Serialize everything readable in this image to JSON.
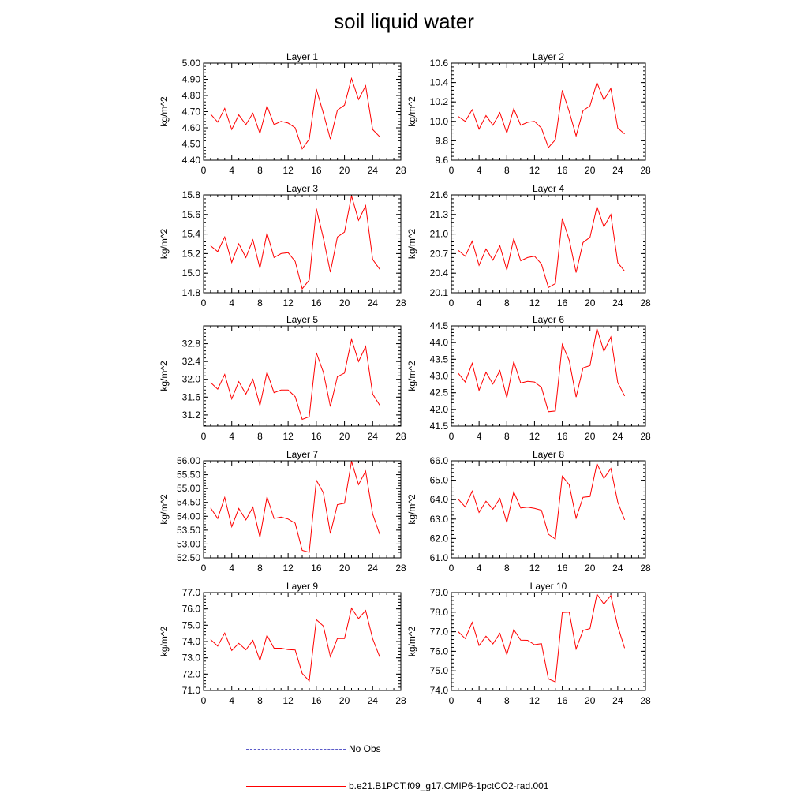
{
  "title": "soil liquid water",
  "legend": [
    {
      "label": "No Obs",
      "color": "#5a5ac8",
      "style": "dashed"
    },
    {
      "label": "b.e21.B1PCT.f09_g17.CMIP6-1pctCO2-rad.001",
      "color": "#ff0000",
      "style": "solid"
    }
  ],
  "chart_data": [
    {
      "type": "line",
      "title": "Layer 1",
      "xlabel": "",
      "ylabel": "kg/m^2",
      "xlim": [
        0,
        28
      ],
      "xticks": [
        0,
        4,
        8,
        12,
        16,
        20,
        24,
        28
      ],
      "ylim": [
        4.4,
        5.0
      ],
      "yticks": [
        "4.40",
        "4.50",
        "4.60",
        "4.70",
        "4.80",
        "4.90",
        "5.00"
      ],
      "series": [
        {
          "color": "#ff0000",
          "x": [
            1,
            2,
            3,
            4,
            5,
            6,
            7,
            8,
            9,
            10,
            11,
            12,
            13,
            14,
            15,
            16,
            17,
            18,
            19,
            20,
            21,
            22,
            23,
            24,
            25
          ],
          "y": [
            4.685,
            4.635,
            4.72,
            4.59,
            4.68,
            4.62,
            4.69,
            4.565,
            4.735,
            4.62,
            4.64,
            4.63,
            4.6,
            4.47,
            4.53,
            4.84,
            4.69,
            4.53,
            4.71,
            4.74,
            4.905,
            4.775,
            4.86,
            4.59,
            4.545
          ]
        }
      ]
    },
    {
      "type": "line",
      "title": "Layer 2",
      "xlabel": "",
      "ylabel": "kg/m^2",
      "xlim": [
        0,
        28
      ],
      "xticks": [
        0,
        4,
        8,
        12,
        16,
        20,
        24,
        28
      ],
      "ylim": [
        9.6,
        10.6
      ],
      "yticks": [
        "9.6",
        "9.8",
        "10.0",
        "10.2",
        "10.4",
        "10.6"
      ],
      "series": [
        {
          "color": "#ff0000",
          "x": [
            1,
            2,
            3,
            4,
            5,
            6,
            7,
            8,
            9,
            10,
            11,
            12,
            13,
            14,
            15,
            16,
            17,
            18,
            19,
            20,
            21,
            22,
            23,
            24,
            25
          ],
          "y": [
            10.05,
            10.0,
            10.12,
            9.92,
            10.06,
            9.96,
            10.09,
            9.88,
            10.13,
            9.96,
            9.99,
            10.0,
            9.93,
            9.73,
            9.81,
            10.32,
            10.1,
            9.85,
            10.11,
            10.16,
            10.4,
            10.22,
            10.34,
            9.93,
            9.87
          ]
        }
      ]
    },
    {
      "type": "line",
      "title": "Layer 3",
      "xlabel": "",
      "ylabel": "kg/m^2",
      "xlim": [
        0,
        28
      ],
      "xticks": [
        0,
        4,
        8,
        12,
        16,
        20,
        24,
        28
      ],
      "ylim": [
        14.8,
        15.8
      ],
      "yticks": [
        "14.8",
        "15.0",
        "15.2",
        "15.4",
        "15.6",
        "15.8"
      ],
      "series": [
        {
          "color": "#ff0000",
          "x": [
            1,
            2,
            3,
            4,
            5,
            6,
            7,
            8,
            9,
            10,
            11,
            12,
            13,
            14,
            15,
            16,
            17,
            18,
            19,
            20,
            21,
            22,
            23,
            24,
            25
          ],
          "y": [
            15.28,
            15.22,
            15.37,
            15.11,
            15.3,
            15.16,
            15.34,
            15.05,
            15.41,
            15.16,
            15.2,
            15.21,
            15.12,
            14.84,
            14.93,
            15.66,
            15.36,
            15.01,
            15.37,
            15.42,
            15.79,
            15.54,
            15.69,
            15.14,
            15.04
          ]
        }
      ]
    },
    {
      "type": "line",
      "title": "Layer 4",
      "xlabel": "",
      "ylabel": "kg/m^2",
      "xlim": [
        0,
        28
      ],
      "xticks": [
        0,
        4,
        8,
        12,
        16,
        20,
        24,
        28
      ],
      "ylim": [
        20.1,
        21.6
      ],
      "yticks": [
        "20.1",
        "20.4",
        "20.7",
        "21.0",
        "21.3",
        "21.6"
      ],
      "series": [
        {
          "color": "#ff0000",
          "x": [
            1,
            2,
            3,
            4,
            5,
            6,
            7,
            8,
            9,
            10,
            11,
            12,
            13,
            14,
            15,
            16,
            17,
            18,
            19,
            20,
            21,
            22,
            23,
            24,
            25
          ],
          "y": [
            20.75,
            20.66,
            20.89,
            20.52,
            20.77,
            20.6,
            20.82,
            20.45,
            20.93,
            20.59,
            20.64,
            20.66,
            20.54,
            20.18,
            20.24,
            21.24,
            20.91,
            20.41,
            20.87,
            20.95,
            21.42,
            21.11,
            21.3,
            20.56,
            20.43
          ]
        }
      ]
    },
    {
      "type": "line",
      "title": "Layer 5",
      "xlabel": "",
      "ylabel": "kg/m^2",
      "xlim": [
        0,
        28
      ],
      "xticks": [
        0,
        4,
        8,
        12,
        16,
        20,
        24,
        28
      ],
      "ylim": [
        30.95,
        33.2
      ],
      "yticks": [
        "31.2",
        "31.6",
        "32.0",
        "32.4",
        "32.8"
      ],
      "series": [
        {
          "color": "#ff0000",
          "x": [
            1,
            2,
            3,
            4,
            5,
            6,
            7,
            8,
            9,
            10,
            11,
            12,
            13,
            14,
            15,
            16,
            17,
            18,
            19,
            20,
            21,
            22,
            23,
            24,
            25
          ],
          "y": [
            31.93,
            31.78,
            32.11,
            31.56,
            31.95,
            31.67,
            32.0,
            31.41,
            32.16,
            31.7,
            31.76,
            31.76,
            31.61,
            31.1,
            31.16,
            32.6,
            32.16,
            31.39,
            32.06,
            32.14,
            32.9,
            32.4,
            32.74,
            31.67,
            31.42
          ]
        }
      ]
    },
    {
      "type": "line",
      "title": "Layer 6",
      "xlabel": "",
      "ylabel": "kg/m^2",
      "xlim": [
        0,
        28
      ],
      "xticks": [
        0,
        4,
        8,
        12,
        16,
        20,
        24,
        28
      ],
      "ylim": [
        41.5,
        44.5
      ],
      "yticks": [
        "41.5",
        "42.0",
        "42.5",
        "43.0",
        "43.5",
        "44.0",
        "44.5"
      ],
      "series": [
        {
          "color": "#ff0000",
          "x": [
            1,
            2,
            3,
            4,
            5,
            6,
            7,
            8,
            9,
            10,
            11,
            12,
            13,
            14,
            15,
            16,
            17,
            18,
            19,
            20,
            21,
            22,
            23,
            24,
            25
          ],
          "y": [
            43.08,
            42.82,
            43.38,
            42.57,
            43.11,
            42.76,
            43.16,
            42.35,
            43.43,
            42.79,
            42.84,
            42.82,
            42.66,
            41.93,
            41.95,
            43.95,
            43.46,
            42.37,
            43.24,
            43.31,
            44.42,
            43.74,
            44.17,
            42.8,
            42.4
          ]
        }
      ]
    },
    {
      "type": "line",
      "title": "Layer 7",
      "xlabel": "",
      "ylabel": "kg/m^2",
      "xlim": [
        0,
        28
      ],
      "xticks": [
        0,
        4,
        8,
        12,
        16,
        20,
        24,
        28
      ],
      "ylim": [
        52.5,
        56.0
      ],
      "yticks": [
        "52.50",
        "53.00",
        "53.50",
        "54.00",
        "54.50",
        "55.00",
        "55.50",
        "56.00"
      ],
      "series": [
        {
          "color": "#ff0000",
          "x": [
            1,
            2,
            3,
            4,
            5,
            6,
            7,
            8,
            9,
            10,
            11,
            12,
            13,
            14,
            15,
            16,
            17,
            18,
            19,
            20,
            21,
            22,
            23,
            24,
            25
          ],
          "y": [
            54.3,
            53.92,
            54.68,
            53.62,
            54.28,
            53.87,
            54.33,
            53.24,
            54.7,
            53.92,
            53.97,
            53.9,
            53.75,
            52.77,
            52.7,
            55.3,
            54.85,
            53.38,
            54.42,
            54.47,
            55.98,
            55.14,
            55.63,
            54.08,
            53.35
          ]
        }
      ]
    },
    {
      "type": "line",
      "title": "Layer 8",
      "xlabel": "",
      "ylabel": "kg/m^2",
      "xlim": [
        0,
        28
      ],
      "xticks": [
        0,
        4,
        8,
        12,
        16,
        20,
        24,
        28
      ],
      "ylim": [
        61.0,
        66.0
      ],
      "yticks": [
        "61.0",
        "62.0",
        "63.0",
        "64.0",
        "65.0",
        "66.0"
      ],
      "series": [
        {
          "color": "#ff0000",
          "x": [
            1,
            2,
            3,
            4,
            5,
            6,
            7,
            8,
            9,
            10,
            11,
            12,
            13,
            14,
            15,
            16,
            17,
            18,
            19,
            20,
            21,
            22,
            23,
            24,
            25
          ],
          "y": [
            64.02,
            63.62,
            64.44,
            63.34,
            63.92,
            63.51,
            64.06,
            62.82,
            64.4,
            63.57,
            63.61,
            63.55,
            63.45,
            62.22,
            61.97,
            65.21,
            64.76,
            63.05,
            64.12,
            64.16,
            65.86,
            65.09,
            65.61,
            63.87,
            62.96
          ]
        }
      ]
    },
    {
      "type": "line",
      "title": "Layer 9",
      "xlabel": "",
      "ylabel": "kg/m^2",
      "xlim": [
        0,
        28
      ],
      "xticks": [
        0,
        4,
        8,
        12,
        16,
        20,
        24,
        28
      ],
      "ylim": [
        71.0,
        77.0
      ],
      "yticks": [
        "71.0",
        "72.0",
        "73.0",
        "74.0",
        "75.0",
        "76.0",
        "77.0"
      ],
      "series": [
        {
          "color": "#ff0000",
          "x": [
            1,
            2,
            3,
            4,
            5,
            6,
            7,
            8,
            9,
            10,
            11,
            12,
            13,
            14,
            15,
            16,
            17,
            18,
            19,
            20,
            21,
            22,
            23,
            24,
            25
          ],
          "y": [
            74.12,
            73.72,
            74.52,
            73.45,
            73.89,
            73.49,
            74.07,
            72.83,
            74.38,
            73.59,
            73.59,
            73.5,
            73.48,
            72.04,
            71.58,
            75.34,
            74.95,
            73.07,
            74.19,
            74.18,
            76.04,
            75.41,
            75.9,
            74.17,
            73.06
          ]
        }
      ]
    },
    {
      "type": "line",
      "title": "Layer 10",
      "xlabel": "",
      "ylabel": "kg/m^2",
      "xlim": [
        0,
        28
      ],
      "xticks": [
        0,
        4,
        8,
        12,
        16,
        20,
        24,
        28
      ],
      "ylim": [
        74.0,
        79.0
      ],
      "yticks": [
        "74.0",
        "75.0",
        "76.0",
        "77.0",
        "78.0",
        "79.0"
      ],
      "series": [
        {
          "color": "#ff0000",
          "x": [
            1,
            2,
            3,
            4,
            5,
            6,
            7,
            8,
            9,
            10,
            11,
            12,
            13,
            14,
            15,
            16,
            17,
            18,
            19,
            20,
            21,
            22,
            23,
            24,
            25
          ],
          "y": [
            77.0,
            76.65,
            77.48,
            76.3,
            76.77,
            76.38,
            76.92,
            75.83,
            77.11,
            76.57,
            76.56,
            76.34,
            76.39,
            74.59,
            74.44,
            77.98,
            78.0,
            76.12,
            77.07,
            77.16,
            78.92,
            78.41,
            78.85,
            77.27,
            76.16
          ]
        }
      ]
    }
  ]
}
